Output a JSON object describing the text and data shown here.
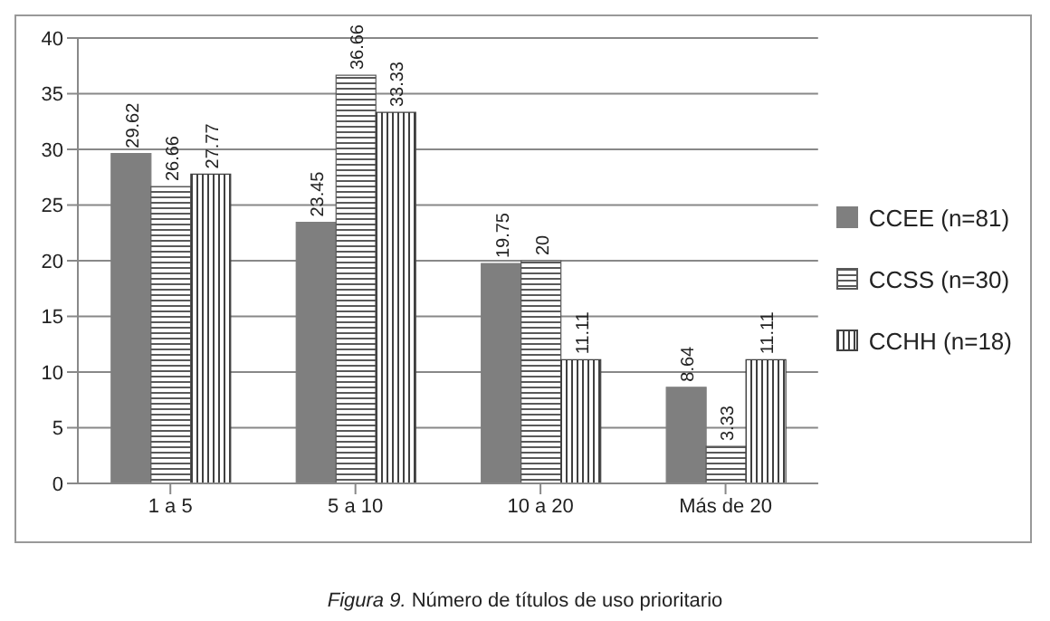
{
  "chart_data": {
    "type": "bar",
    "title": "Figura 9. Número de títulos de uso prioritario",
    "categories": [
      "1 a 5",
      "5 a 10",
      "10 a 20",
      "Más de 20"
    ],
    "series": [
      {
        "name": "CCEE (n=81)",
        "color": "#7f7f7f",
        "values": [
          29.62,
          23.45,
          19.75,
          8.64
        ]
      },
      {
        "name": "CCSS (n=30)",
        "color": "#595959",
        "values": [
          26.66,
          36.66,
          20,
          3.33
        ]
      },
      {
        "name": "CCHH (n=18)",
        "color": "#404040",
        "values": [
          27.77,
          33.33,
          11.11,
          11.11
        ]
      }
    ],
    "ylim": [
      0,
      40
    ],
    "yticks": [
      0,
      5,
      10,
      15,
      20,
      25,
      30,
      35,
      40
    ],
    "grid": "y",
    "legend": "right",
    "data_labels": true
  }
}
